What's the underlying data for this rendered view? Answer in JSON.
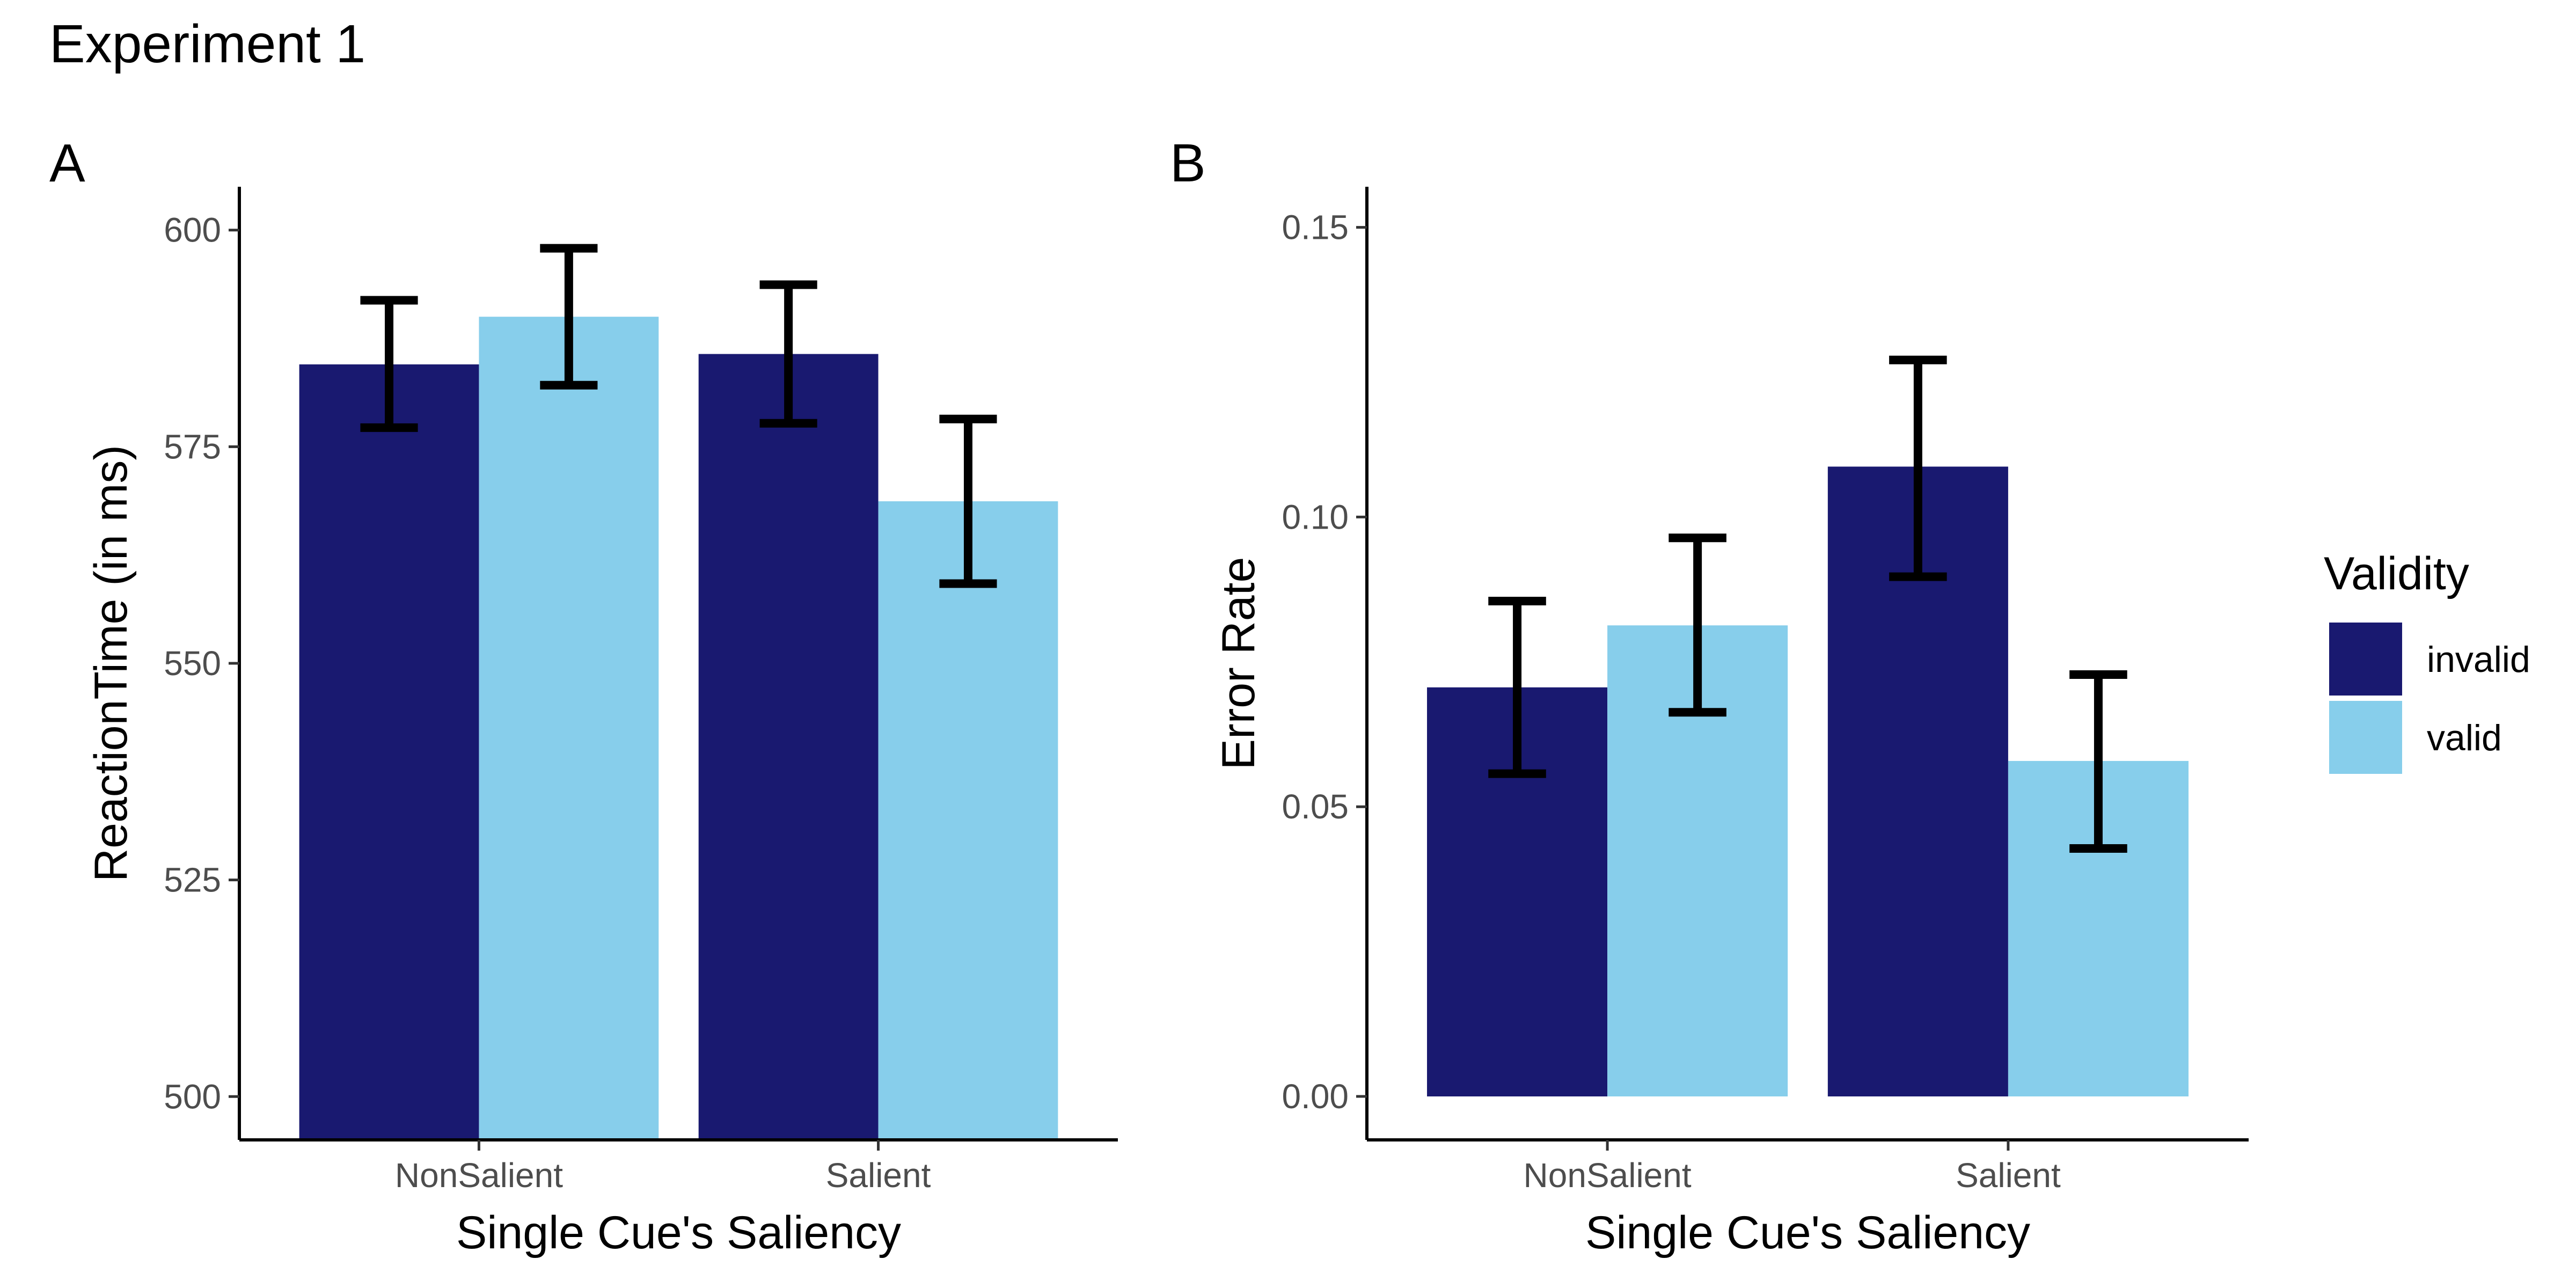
{
  "figure": {
    "title": "Experiment 1"
  },
  "legend": {
    "title": "Validity",
    "entries": [
      {
        "label": "invalid",
        "color": "#191970"
      },
      {
        "label": "valid",
        "color": "#87CEEB"
      }
    ]
  },
  "chart_data": [
    {
      "type": "bar",
      "panel": "A",
      "categories": [
        "NonSalient",
        "Salient"
      ],
      "series": [
        {
          "name": "invalid",
          "values": [
            584.5,
            585.7
          ],
          "error_low": [
            577.2,
            577.7
          ],
          "error_high": [
            591.9,
            593.7
          ]
        },
        {
          "name": "valid",
          "values": [
            590.0,
            568.7
          ],
          "error_low": [
            582.1,
            559.2
          ],
          "error_high": [
            597.9,
            578.2
          ]
        }
      ],
      "xlabel": "Single Cue's Saliency",
      "ylabel": "ReactionTime (in ms)",
      "ylim": [
        495,
        605
      ],
      "yticks": [
        500,
        525,
        550,
        575,
        600
      ],
      "ytick_labels": [
        "500",
        "525",
        "550",
        "575",
        "600"
      ],
      "grid": false
    },
    {
      "type": "bar",
      "panel": "B",
      "categories": [
        "NonSalient",
        "Salient"
      ],
      "series": [
        {
          "name": "invalid",
          "values": [
            0.0706,
            0.1087
          ],
          "error_low": [
            0.0557,
            0.0897
          ],
          "error_high": [
            0.0855,
            0.1271
          ]
        },
        {
          "name": "valid",
          "values": [
            0.0813,
            0.0579
          ],
          "error_low": [
            0.0663,
            0.0428
          ],
          "error_high": [
            0.0964,
            0.0728
          ]
        }
      ],
      "xlabel": "Single Cue's Saliency",
      "ylabel": "Error Rate",
      "ylim": [
        -0.0075,
        0.157
      ],
      "yticks": [
        0,
        0.05,
        0.1,
        0.15
      ],
      "ytick_labels": [
        "0.00",
        "0.05",
        "0.10",
        "0.15"
      ],
      "grid": false
    }
  ]
}
